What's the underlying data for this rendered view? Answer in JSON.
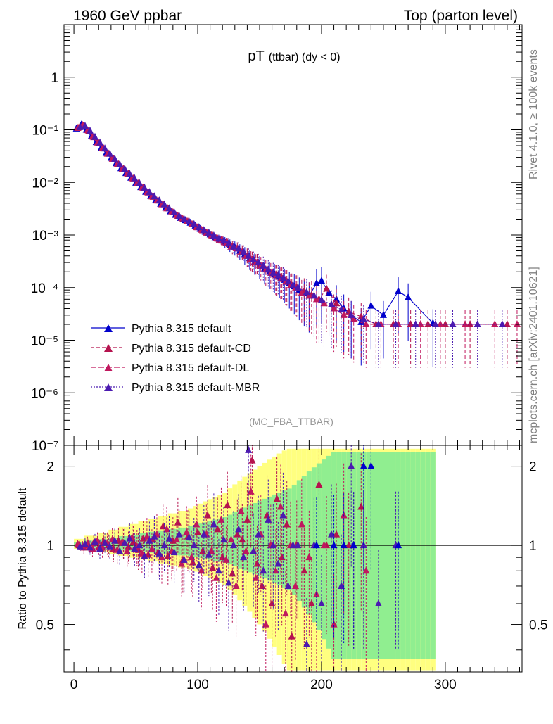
{
  "header": {
    "left": "1960 GeV ppbar",
    "right": "Top (parton level)"
  },
  "side_labels": {
    "top": "Rivet 4.1.0, ≥ 100k events",
    "bottom": "mcplots.cern.ch [arXiv:2401.10621]"
  },
  "plot_label": "(MC_FBA_TTBAR)",
  "colors": {
    "default": "#0000cc",
    "cd": "#b5134e",
    "dl": "#c0185e",
    "mbr": "#4b1ab0",
    "band_yellow": "#ffff80",
    "band_green": "#90ee90"
  },
  "chart_data": [
    {
      "type": "scatter",
      "title_main": "pT",
      "title_sub": "(ttbar) (dy < 0)",
      "xlabel": "",
      "ylabel": "",
      "yscale": "log",
      "xlim": [
        -8,
        362
      ],
      "ylim": [
        1e-07,
        10
      ],
      "ytick_labels": [
        "10⁻⁷",
        "10⁻⁶",
        "10⁻⁵",
        "10⁻⁴",
        "10⁻³",
        "10⁻²",
        "10⁻¹",
        "1"
      ],
      "ytick_values": [
        1e-07,
        1e-06,
        1e-05,
        0.0001,
        0.001,
        0.01,
        0.1,
        1
      ],
      "legend_position": "bottom-left",
      "series": [
        {
          "name": "Pythia 8.315 default",
          "key": "default",
          "line": "solid",
          "x": [
            2,
            6,
            10,
            14,
            18,
            22,
            26,
            30,
            34,
            38,
            42,
            46,
            50,
            54,
            58,
            62,
            66,
            70,
            74,
            78,
            82,
            86,
            90,
            94,
            98,
            102,
            106,
            110,
            114,
            118,
            122,
            126,
            130,
            134,
            138,
            142,
            146,
            150,
            154,
            158,
            162,
            166,
            170,
            174,
            178,
            182,
            186,
            190,
            196,
            200,
            206,
            212,
            218,
            224,
            232,
            240,
            250,
            262,
            270,
            290
          ],
          "y": [
            0.105,
            0.125,
            0.1,
            0.075,
            0.058,
            0.045,
            0.036,
            0.029,
            0.023,
            0.0185,
            0.015,
            0.0122,
            0.0098,
            0.0081,
            0.0066,
            0.0055,
            0.0046,
            0.0039,
            0.0033,
            0.0028,
            0.0024,
            0.0021,
            0.0019,
            0.0017,
            0.0015,
            0.0013,
            0.00115,
            0.00102,
            0.0009,
            0.00082,
            0.00074,
            0.00065,
            0.00058,
            0.0005,
            0.00043,
            0.00036,
            0.00031,
            0.00027,
            0.00023,
            0.0002,
            0.00018,
            0.00016,
            0.00014,
            0.00012,
            0.000105,
            9e-05,
            7.8e-05,
            7e-05,
            0.00012,
            0.000135,
            8e-05,
            6e-05,
            4e-05,
            3e-05,
            2.2e-05,
            4.5e-05,
            3e-05,
            8.5e-05,
            6.5e-05,
            2.1e-05
          ]
        },
        {
          "name": "Pythia 8.315 default-CD",
          "key": "cd",
          "line": "dashed",
          "x": [
            4,
            8,
            12,
            16,
            20,
            24,
            28,
            32,
            36,
            40,
            44,
            48,
            52,
            56,
            60,
            64,
            68,
            72,
            76,
            80,
            84,
            88,
            92,
            96,
            100,
            104,
            108,
            112,
            116,
            120,
            124,
            128,
            132,
            136,
            140,
            144,
            148,
            152,
            156,
            160,
            164,
            168,
            172,
            176,
            180,
            186,
            192,
            198,
            204,
            212,
            222,
            232,
            244,
            258,
            272,
            286,
            300,
            320,
            350
          ],
          "y": [
            0.11,
            0.12,
            0.095,
            0.072,
            0.056,
            0.044,
            0.035,
            0.028,
            0.022,
            0.018,
            0.0145,
            0.0118,
            0.0095,
            0.0079,
            0.0064,
            0.0053,
            0.0045,
            0.0038,
            0.0032,
            0.0027,
            0.0023,
            0.002,
            0.0018,
            0.0016,
            0.0014,
            0.00122,
            0.0011,
            0.00097,
            0.00085,
            0.00078,
            0.0007,
            0.0006,
            0.00055,
            0.00047,
            0.0004,
            0.00034,
            0.0003,
            0.00026,
            0.00022,
            0.00019,
            0.00017,
            0.00015,
            0.00013,
            0.00011,
            0.0001,
            8.5e-05,
            7.2e-05,
            6e-05,
            9.5e-05,
            5e-05,
            3.5e-05,
            2.8e-05,
            2e-05,
            2e-05,
            2e-05,
            2e-05,
            2e-05,
            2e-05,
            2e-05
          ]
        },
        {
          "name": "Pythia 8.315 default-DL",
          "key": "dl",
          "line": "dashed",
          "x": [
            3,
            7,
            11,
            15,
            19,
            23,
            27,
            31,
            35,
            39,
            43,
            47,
            51,
            55,
            59,
            63,
            67,
            71,
            75,
            79,
            83,
            87,
            91,
            95,
            99,
            103,
            107,
            111,
            115,
            119,
            123,
            127,
            131,
            135,
            139,
            143,
            147,
            151,
            155,
            159,
            163,
            167,
            171,
            175,
            179,
            184,
            190,
            196,
            202,
            210,
            218,
            226,
            236,
            248,
            262,
            280,
            296,
            316,
            340,
            358
          ],
          "y": [
            0.108,
            0.122,
            0.098,
            0.074,
            0.057,
            0.045,
            0.035,
            0.028,
            0.0225,
            0.018,
            0.0148,
            0.012,
            0.0097,
            0.008,
            0.0065,
            0.0054,
            0.0045,
            0.0038,
            0.0032,
            0.0028,
            0.0024,
            0.0021,
            0.0018,
            0.0016,
            0.0014,
            0.00125,
            0.0011,
            0.00098,
            0.00086,
            0.00079,
            0.00071,
            0.0006,
            0.00056,
            0.00048,
            0.0004,
            0.00035,
            0.0003,
            0.00026,
            0.00022,
            0.00019,
            0.00017,
            0.00015,
            0.00013,
            0.00011,
            0.0001,
            8e-05,
            7e-05,
            6e-05,
            5e-05,
            4e-05,
            3e-05,
            2.5e-05,
            2e-05,
            2e-05,
            2e-05,
            2e-05,
            2e-05,
            2e-05,
            2e-05,
            2e-05
          ]
        },
        {
          "name": "Pythia 8.315 default-MBR",
          "key": "mbr",
          "line": "dotted",
          "x": [
            5,
            9,
            13,
            17,
            21,
            25,
            29,
            33,
            37,
            41,
            45,
            49,
            53,
            57,
            61,
            65,
            69,
            73,
            77,
            81,
            85,
            89,
            93,
            97,
            101,
            105,
            109,
            113,
            117,
            121,
            125,
            129,
            133,
            137,
            141,
            145,
            149,
            153,
            157,
            161,
            165,
            169,
            173,
            177,
            181,
            188,
            194,
            200,
            208,
            216,
            224,
            234,
            246,
            260,
            276,
            292,
            306,
            326,
            346
          ],
          "y": [
            0.112,
            0.118,
            0.096,
            0.073,
            0.057,
            0.044,
            0.035,
            0.028,
            0.022,
            0.018,
            0.0146,
            0.0119,
            0.0096,
            0.0079,
            0.0065,
            0.0054,
            0.0045,
            0.0038,
            0.0032,
            0.0027,
            0.0023,
            0.002,
            0.0018,
            0.0016,
            0.0014,
            0.00123,
            0.0011,
            0.00097,
            0.00085,
            0.00078,
            0.0007,
            0.0006,
            0.00055,
            0.00047,
            0.0004,
            0.00034,
            0.0003,
            0.00026,
            0.00022,
            0.00019,
            0.00017,
            0.00015,
            0.00013,
            0.00011,
            0.0001,
            8.2e-05,
            7e-05,
            5.8e-05,
            4.8e-05,
            3.8e-05,
            3e-05,
            2.5e-05,
            2e-05,
            2e-05,
            2e-05,
            2e-05,
            2e-05,
            2e-05,
            2e-05
          ]
        }
      ]
    },
    {
      "type": "scatter",
      "title": "",
      "xlabel": "",
      "ylabel": "Ratio to Pythia 8.315 default",
      "yscale": "log",
      "xlim": [
        -8,
        362
      ],
      "ylim": [
        0.33,
        2.4
      ],
      "xtick_labels": [
        "0",
        "100",
        "200",
        "300"
      ],
      "xtick_values": [
        0,
        100,
        200,
        300
      ],
      "ytick_labels": [
        "0.5",
        "1",
        "2"
      ],
      "ytick_values": [
        0.5,
        1,
        2
      ],
      "reference_line": 1,
      "band": {
        "x_start": 0,
        "bin_width": 4,
        "green_halfwidth_frac": [
          0.02,
          0.02,
          0.03,
          0.03,
          0.03,
          0.04,
          0.04,
          0.05,
          0.05,
          0.06,
          0.06,
          0.07,
          0.07,
          0.08,
          0.08,
          0.09,
          0.09,
          0.1,
          0.1,
          0.11,
          0.11,
          0.12,
          0.12,
          0.13,
          0.14,
          0.15,
          0.16,
          0.17,
          0.18,
          0.19,
          0.2,
          0.22,
          0.24,
          0.26,
          0.28,
          0.3,
          0.32,
          0.34,
          0.36,
          0.38,
          0.4,
          0.42,
          0.44,
          0.46,
          0.5,
          0.55,
          0.6,
          0.65,
          0.7,
          0.75,
          0.8,
          0.85,
          0.9,
          0.9,
          0.9,
          0.9,
          0.9,
          0.9,
          0.9,
          0.9,
          0.9,
          0.9,
          0.9,
          0.9,
          0.9,
          0.9,
          0.9,
          0.9,
          0.9,
          0.9,
          0.9,
          0.9,
          0.9
        ],
        "yellow_factor": 2.1
      },
      "series": [
        {
          "key": "cd",
          "x": [
            4,
            8,
            12,
            16,
            20,
            24,
            28,
            32,
            36,
            40,
            44,
            48,
            52,
            56,
            60,
            64,
            68,
            72,
            76,
            80,
            84,
            88,
            92,
            96,
            100,
            104,
            108,
            112,
            116,
            120,
            124,
            128,
            132,
            136,
            140,
            144,
            148,
            152,
            156,
            160,
            164,
            168,
            172,
            176,
            180,
            186,
            192,
            198,
            204,
            212,
            222,
            232
          ],
          "y": [
            1.0,
            0.98,
            1.0,
            1.02,
            0.98,
            1.03,
            1.0,
            0.97,
            1.04,
            1.02,
            0.99,
            1.03,
            0.96,
            1.06,
            0.92,
            1.05,
            0.94,
            1.18,
            0.91,
            1.04,
            1.22,
            0.88,
            1.08,
            0.86,
            1.12,
            0.95,
            1.3,
            0.82,
            1.15,
            0.9,
            1.42,
            0.78,
            1.1,
            1.05,
            1.25,
            2.1,
            0.85,
            0.7,
            1.3,
            0.6,
            1.5,
            0.9,
            1.2,
            0.45,
            1.0,
            0.8,
            0.6,
            1.7,
            1.0,
            1.1,
            1.0,
            1.4
          ]
        },
        {
          "key": "dl",
          "x": [
            3,
            7,
            11,
            15,
            19,
            23,
            27,
            31,
            35,
            39,
            43,
            47,
            51,
            55,
            59,
            63,
            67,
            71,
            75,
            79,
            83,
            87,
            91,
            95,
            99,
            103,
            107,
            111,
            115,
            119,
            123,
            127,
            131,
            135,
            139,
            143,
            147,
            151,
            155,
            159,
            163,
            167,
            171,
            175,
            179,
            184,
            190,
            196,
            202,
            210,
            218,
            226,
            236
          ],
          "y": [
            1.01,
            0.99,
            1.02,
            0.97,
            1.04,
            0.98,
            1.02,
            1.05,
            0.96,
            1.03,
            0.95,
            1.07,
            0.99,
            0.93,
            1.08,
            0.97,
            1.1,
            0.9,
            1.15,
            0.95,
            1.05,
            0.85,
            1.12,
            0.9,
            1.2,
            0.8,
            1.1,
            0.95,
            0.75,
            1.25,
            0.88,
            1.05,
            0.7,
            1.35,
            0.95,
            1.6,
            0.75,
            1.1,
            0.5,
            1.0,
            0.8,
            1.4,
            0.55,
            1.0,
            0.7,
            1.2,
            0.9,
            0.65,
            1.0,
            0.5,
            1.3,
            1.0,
            0.8
          ]
        },
        {
          "key": "mbr",
          "x": [
            5,
            9,
            13,
            17,
            21,
            25,
            29,
            33,
            37,
            41,
            45,
            49,
            53,
            57,
            61,
            65,
            69,
            73,
            77,
            81,
            85,
            89,
            93,
            97,
            101,
            105,
            109,
            113,
            117,
            121,
            125,
            129,
            133,
            137,
            141,
            145,
            149,
            153,
            157,
            161,
            165,
            169,
            173,
            177,
            181,
            188,
            194,
            200,
            208,
            216,
            224,
            234,
            246,
            260
          ],
          "y": [
            0.99,
            1.01,
            0.98,
            1.03,
            0.97,
            1.02,
            0.99,
            1.04,
            0.95,
            1.02,
            1.06,
            0.97,
            1.0,
            0.91,
            1.04,
            1.08,
            0.93,
            1.0,
            1.06,
            0.94,
            1.1,
            0.88,
            1.07,
            1.0,
            0.84,
            1.1,
            0.92,
            1.2,
            0.8,
            1.05,
            0.72,
            1.0,
            1.15,
            0.9,
            2.3,
            0.95,
            1.1,
            0.8,
            1.25,
            1.0,
            0.85,
            1.3,
            0.7,
            1.0,
            1.0,
            0.42,
            1.0,
            0.6,
            1.1,
            0.7,
            2.0,
            1.0,
            0.6,
            1.0
          ]
        },
        {
          "key": "default",
          "x": [
            196,
            210,
            218,
            226,
            234,
            240,
            262
          ],
          "y": [
            1.0,
            1.0,
            1.0,
            1.0,
            2.0,
            2.0,
            1.0
          ]
        }
      ]
    }
  ]
}
